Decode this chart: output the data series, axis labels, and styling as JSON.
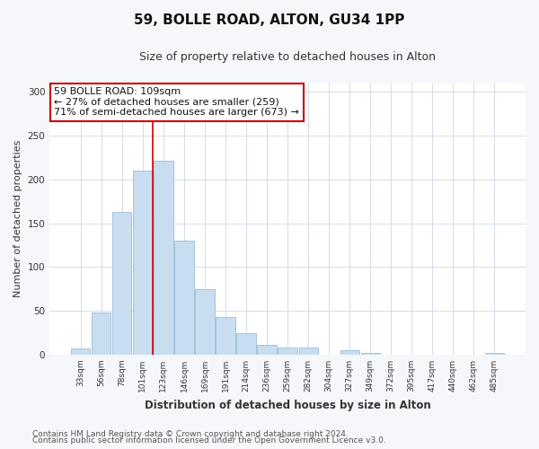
{
  "title": "59, BOLLE ROAD, ALTON, GU34 1PP",
  "subtitle": "Size of property relative to detached houses in Alton",
  "xlabel": "Distribution of detached houses by size in Alton",
  "ylabel": "Number of detached properties",
  "bar_labels": [
    "33sqm",
    "56sqm",
    "78sqm",
    "101sqm",
    "123sqm",
    "146sqm",
    "169sqm",
    "191sqm",
    "214sqm",
    "236sqm",
    "259sqm",
    "282sqm",
    "304sqm",
    "327sqm",
    "349sqm",
    "372sqm",
    "395sqm",
    "417sqm",
    "440sqm",
    "462sqm",
    "485sqm"
  ],
  "bar_values": [
    7,
    48,
    163,
    210,
    221,
    130,
    75,
    43,
    25,
    11,
    8,
    8,
    0,
    5,
    2,
    0,
    0,
    0,
    0,
    0,
    2
  ],
  "bar_color": "#c8ddf0",
  "bar_edge_color": "#99bdd8",
  "vline_x_idx": 3,
  "vline_color": "#cc0000",
  "annotation_text": "59 BOLLE ROAD: 109sqm\n← 27% of detached houses are smaller (259)\n71% of semi-detached houses are larger (673) →",
  "annotation_box_color": "white",
  "annotation_box_edge": "#cc0000",
  "ylim": [
    0,
    310
  ],
  "yticks": [
    0,
    50,
    100,
    150,
    200,
    250,
    300
  ],
  "footer_line1": "Contains HM Land Registry data © Crown copyright and database right 2024.",
  "footer_line2": "Contains public sector information licensed under the Open Government Licence v3.0.",
  "bg_color": "#f5f7fb",
  "plot_bg_color": "#ffffff",
  "grid_color": "#d5dce8"
}
